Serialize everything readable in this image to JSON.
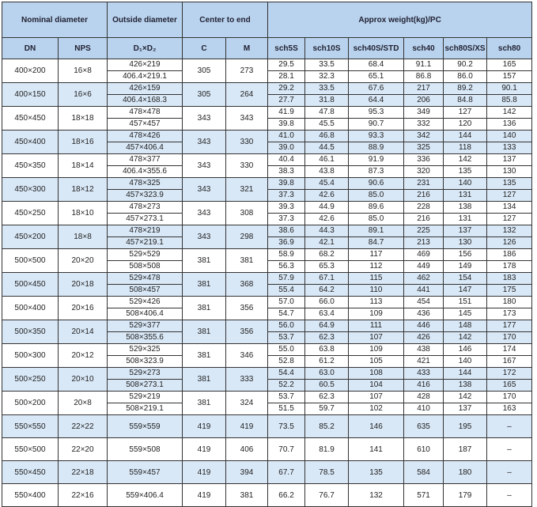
{
  "table": {
    "header": {
      "groups": [
        "Nominal diameter",
        "Outside diameter",
        "Center to end",
        "Approx weight(kg)/PC"
      ],
      "columns": [
        "DN",
        "NPS",
        "D₁×D₂",
        "C",
        "M",
        "sch5S",
        "sch10S",
        "sch40S/STD",
        "sch40",
        "sch80S/XS",
        "sch80"
      ]
    },
    "rows": [
      [
        "400×200",
        "16×8",
        [
          "426×219",
          "406.4×219.1"
        ],
        "305",
        "273",
        [
          "29.5",
          "28.1"
        ],
        [
          "33.5",
          "32.3"
        ],
        [
          "68.4",
          "65.1"
        ],
        [
          "91.1",
          "86.8"
        ],
        [
          "90.2",
          "86.0"
        ],
        [
          "165",
          "157"
        ]
      ],
      [
        "400×150",
        "16×6",
        [
          "426×159",
          "406.4×168.3"
        ],
        "305",
        "264",
        [
          "29.2",
          "27.7"
        ],
        [
          "33.5",
          "31.8"
        ],
        [
          "67.6",
          "64.4"
        ],
        [
          "217",
          "206"
        ],
        [
          "89.2",
          "84.8"
        ],
        [
          "90.1",
          "85.8"
        ]
      ],
      [
        "450×450",
        "18×18",
        [
          "478×478",
          "457×457"
        ],
        "343",
        "343",
        [
          "41.9",
          "39.8"
        ],
        [
          "47.8",
          "45.5"
        ],
        [
          "95.3",
          "90.7"
        ],
        [
          "349",
          "332"
        ],
        [
          "127",
          "120"
        ],
        [
          "142",
          "136"
        ]
      ],
      [
        "450×400",
        "18×16",
        [
          "478×426",
          "457×406.4"
        ],
        "343",
        "330",
        [
          "41.0",
          "39.0"
        ],
        [
          "46.8",
          "44.5"
        ],
        [
          "93.3",
          "88.9"
        ],
        [
          "342",
          "325"
        ],
        [
          "144",
          "118"
        ],
        [
          "140",
          "133"
        ]
      ],
      [
        "450×350",
        "18×14",
        [
          "478×377",
          "406.4×355.6"
        ],
        "343",
        "330",
        [
          "40.4",
          "38.3"
        ],
        [
          "46.1",
          "43.8"
        ],
        [
          "91.9",
          "87.3"
        ],
        [
          "336",
          "320"
        ],
        [
          "142",
          "135"
        ],
        [
          "137",
          "130"
        ]
      ],
      [
        "450×300",
        "18×12",
        [
          "478×325",
          "457×323.9"
        ],
        "343",
        "321",
        [
          "39.8",
          "37.3"
        ],
        [
          "45.4",
          "42.6"
        ],
        [
          "90.6",
          "85.0"
        ],
        [
          "231",
          "216"
        ],
        [
          "140",
          "131"
        ],
        [
          "135",
          "127"
        ]
      ],
      [
        "450×250",
        "18×10",
        [
          "478×273",
          "457×273.1"
        ],
        "343",
        "308",
        [
          "39.3",
          "37.3"
        ],
        [
          "44.9",
          "42.6"
        ],
        [
          "89.6",
          "85.0"
        ],
        [
          "228",
          "216"
        ],
        [
          "138",
          "131"
        ],
        [
          "134",
          "127"
        ]
      ],
      [
        "450×200",
        "18×8",
        [
          "478×219",
          "457×219.1"
        ],
        "343",
        "298",
        [
          "38.6",
          "36.9"
        ],
        [
          "44.3",
          "42.1"
        ],
        [
          "89.1",
          "84.7"
        ],
        [
          "225",
          "213"
        ],
        [
          "137",
          "130"
        ],
        [
          "132",
          "126"
        ]
      ],
      [
        "500×500",
        "20×20",
        [
          "529×529",
          "508×508"
        ],
        "381",
        "381",
        [
          "58.9",
          "56.3"
        ],
        [
          "68.2",
          "65.3"
        ],
        [
          "117",
          "112"
        ],
        [
          "469",
          "449"
        ],
        [
          "156",
          "149"
        ],
        [
          "186",
          "178"
        ]
      ],
      [
        "500×450",
        "20×18",
        [
          "529×478",
          "508×457"
        ],
        "381",
        "368",
        [
          "57.9",
          "55.4"
        ],
        [
          "67.1",
          "64.2"
        ],
        [
          "115",
          "110"
        ],
        [
          "462",
          "441"
        ],
        [
          "154",
          "147"
        ],
        [
          "183",
          "175"
        ]
      ],
      [
        "500×400",
        "20×16",
        [
          "529×426",
          "508×406.4"
        ],
        "381",
        "356",
        [
          "57.0",
          "54.7"
        ],
        [
          "66.0",
          "63.4"
        ],
        [
          "113",
          "109"
        ],
        [
          "454",
          "436"
        ],
        [
          "151",
          "145"
        ],
        [
          "180",
          "173"
        ]
      ],
      [
        "500×350",
        "20×14",
        [
          "529×377",
          "508×355.6"
        ],
        "381",
        "356",
        [
          "56.0",
          "53.7"
        ],
        [
          "64.9",
          "62.3"
        ],
        [
          "111",
          "107"
        ],
        [
          "446",
          "426"
        ],
        [
          "148",
          "142"
        ],
        [
          "177",
          "170"
        ]
      ],
      [
        "500×300",
        "20×12",
        [
          "529×325",
          "508×323.9"
        ],
        "381",
        "346",
        [
          "55.0",
          "52.8"
        ],
        [
          "63.8",
          "61.2"
        ],
        [
          "109",
          "105"
        ],
        [
          "438",
          "421"
        ],
        [
          "146",
          "140"
        ],
        [
          "174",
          "167"
        ]
      ],
      [
        "500×250",
        "20×10",
        [
          "529×273",
          "508×273.1"
        ],
        "381",
        "333",
        [
          "54.4",
          "52.2"
        ],
        [
          "63.0",
          "60.5"
        ],
        [
          "108",
          "104"
        ],
        [
          "433",
          "416"
        ],
        [
          "144",
          "138"
        ],
        [
          "172",
          "165"
        ]
      ],
      [
        "500×200",
        "20×8",
        [
          "529×219",
          "508×219.1"
        ],
        "381",
        "324",
        [
          "53.7",
          "51.5"
        ],
        [
          "62.3",
          "59.7"
        ],
        [
          "107",
          "102"
        ],
        [
          "428",
          "410"
        ],
        [
          "142",
          "137"
        ],
        [
          "170",
          "163"
        ]
      ],
      [
        "550×550",
        "22×22",
        "559×559",
        "419",
        "419",
        "73.5",
        "85.2",
        "146",
        "635",
        "195",
        "–"
      ],
      [
        "550×500",
        "22×20",
        "559×508",
        "419",
        "406",
        "70.7",
        "81.9",
        "141",
        "610",
        "187",
        "–"
      ],
      [
        "550×450",
        "22×18",
        "559×457",
        "419",
        "394",
        "67.7",
        "78.5",
        "135",
        "584",
        "180",
        "–"
      ],
      [
        "550×400",
        "22×16",
        "559×406.4",
        "419",
        "381",
        "66.2",
        "76.7",
        "132",
        "571",
        "179",
        "–"
      ]
    ]
  }
}
